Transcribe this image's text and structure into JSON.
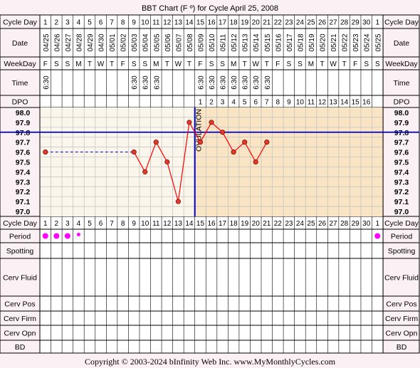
{
  "title": "BBT Chart (F º) for Cycle April 25, 2008",
  "copyright": "Copyright © 2003-2024 bInfinity Web Inc.    www.MyMonthlyCycles.com",
  "row_labels": {
    "cycle_day": "Cycle Day",
    "date": "Date",
    "weekday": "WeekDay",
    "time": "Time",
    "dpo": "DPO",
    "period": "Period",
    "spotting": "Spotting",
    "cerv_fluid": "Cerv Fluid",
    "cerv_pos": "Cerv Pos",
    "cerv_firm": "Cerv Firm",
    "cerv_opn": "Cerv Opn",
    "bd": "BD"
  },
  "ovulation_label": "OVULATION",
  "colors": {
    "background": "#fbf1f4",
    "pre_ovulation_fill": "#fbf6ec",
    "post_ovulation_fill": "#f9e4c4",
    "grid": "#c0c0c0",
    "temp_line": "#ff0000",
    "point_fill": "#e03a2a",
    "coverline": "#0000cc",
    "ovulation_line": "#0000cc",
    "period_dot": "#ff00ff"
  },
  "days": [
    {
      "cd": "1",
      "date": "04/25",
      "wd": "F",
      "time": "6:30",
      "dpo": "",
      "period": "heavy"
    },
    {
      "cd": "2",
      "date": "04/26",
      "wd": "S",
      "time": "",
      "dpo": "",
      "period": "heavy"
    },
    {
      "cd": "3",
      "date": "04/27",
      "wd": "S",
      "time": "",
      "dpo": "",
      "period": "heavy"
    },
    {
      "cd": "4",
      "date": "04/28",
      "wd": "M",
      "time": "",
      "dpo": "",
      "period": "light"
    },
    {
      "cd": "5",
      "date": "04/29",
      "wd": "T",
      "time": "",
      "dpo": "",
      "period": ""
    },
    {
      "cd": "6",
      "date": "04/30",
      "wd": "W",
      "time": "",
      "dpo": "",
      "period": ""
    },
    {
      "cd": "7",
      "date": "05/01",
      "wd": "T",
      "time": "",
      "dpo": "",
      "period": ""
    },
    {
      "cd": "8",
      "date": "05/02",
      "wd": "F",
      "time": "",
      "dpo": "",
      "period": ""
    },
    {
      "cd": "9",
      "date": "05/03",
      "wd": "S",
      "time": "6:30",
      "dpo": "",
      "period": ""
    },
    {
      "cd": "10",
      "date": "05/04",
      "wd": "S",
      "time": "6:30",
      "dpo": "",
      "period": ""
    },
    {
      "cd": "11",
      "date": "05/05",
      "wd": "M",
      "time": "6:30",
      "dpo": "",
      "period": ""
    },
    {
      "cd": "12",
      "date": "05/06",
      "wd": "T",
      "time": "",
      "dpo": "",
      "period": ""
    },
    {
      "cd": "13",
      "date": "05/07",
      "wd": "W",
      "time": "",
      "dpo": "",
      "period": ""
    },
    {
      "cd": "14",
      "date": "05/08",
      "wd": "T",
      "time": "",
      "dpo": "",
      "period": ""
    },
    {
      "cd": "15",
      "date": "05/09",
      "wd": "F",
      "time": "6:30",
      "dpo": "1",
      "period": ""
    },
    {
      "cd": "16",
      "date": "05/10",
      "wd": "S",
      "time": "6:30",
      "dpo": "2",
      "period": ""
    },
    {
      "cd": "17",
      "date": "05/11",
      "wd": "S",
      "time": "6:30",
      "dpo": "3",
      "period": ""
    },
    {
      "cd": "18",
      "date": "05/12",
      "wd": "M",
      "time": "6:30",
      "dpo": "4",
      "period": ""
    },
    {
      "cd": "19",
      "date": "05/13",
      "wd": "T",
      "time": "6:30",
      "dpo": "5",
      "period": ""
    },
    {
      "cd": "20",
      "date": "05/14",
      "wd": "W",
      "time": "6:30",
      "dpo": "6",
      "period": ""
    },
    {
      "cd": "21",
      "date": "05/15",
      "wd": "T",
      "time": "6:30",
      "dpo": "7",
      "period": ""
    },
    {
      "cd": "22",
      "date": "05/16",
      "wd": "F",
      "time": "",
      "dpo": "8",
      "period": ""
    },
    {
      "cd": "23",
      "date": "05/17",
      "wd": "S",
      "time": "",
      "dpo": "9",
      "period": ""
    },
    {
      "cd": "24",
      "date": "05/18",
      "wd": "S",
      "time": "",
      "dpo": "10",
      "period": ""
    },
    {
      "cd": "25",
      "date": "05/19",
      "wd": "M",
      "time": "",
      "dpo": "11",
      "period": ""
    },
    {
      "cd": "26",
      "date": "05/20",
      "wd": "T",
      "time": "",
      "dpo": "12",
      "period": ""
    },
    {
      "cd": "27",
      "date": "05/21",
      "wd": "W",
      "time": "",
      "dpo": "13",
      "period": ""
    },
    {
      "cd": "28",
      "date": "05/22",
      "wd": "T",
      "time": "",
      "dpo": "14",
      "period": ""
    },
    {
      "cd": "29",
      "date": "05/23",
      "wd": "F",
      "time": "",
      "dpo": "15",
      "period": ""
    },
    {
      "cd": "30",
      "date": "05/24",
      "wd": "S",
      "time": "",
      "dpo": "16",
      "period": ""
    },
    {
      "cd": "1",
      "date": "05/25",
      "wd": "S",
      "time": "",
      "dpo": "",
      "period": "heavy"
    }
  ],
  "chart_data": {
    "type": "line",
    "x": [
      1,
      2,
      3,
      4,
      5,
      6,
      7,
      8,
      9,
      10,
      11,
      12,
      13,
      14,
      15,
      16,
      17,
      18,
      19,
      20,
      21
    ],
    "series": [
      {
        "values": [
          97.6,
          null,
          null,
          null,
          null,
          null,
          null,
          null,
          97.6,
          97.4,
          97.7,
          97.5,
          97.1,
          97.9,
          97.7,
          97.9,
          97.8,
          97.6,
          97.7,
          97.5,
          97.7
        ]
      }
    ],
    "y_ticks": [
      "98.0",
      "97.9",
      "97.8",
      "97.7",
      "97.6",
      "97.5",
      "97.4",
      "97.3",
      "97.2",
      "97.1",
      "97.0"
    ],
    "ylim": [
      97.0,
      98.0
    ],
    "gap_dashed_from": 1,
    "gap_dashed_to": 9,
    "coverline": 97.8,
    "ovulation_day": 14,
    "grid": true
  }
}
